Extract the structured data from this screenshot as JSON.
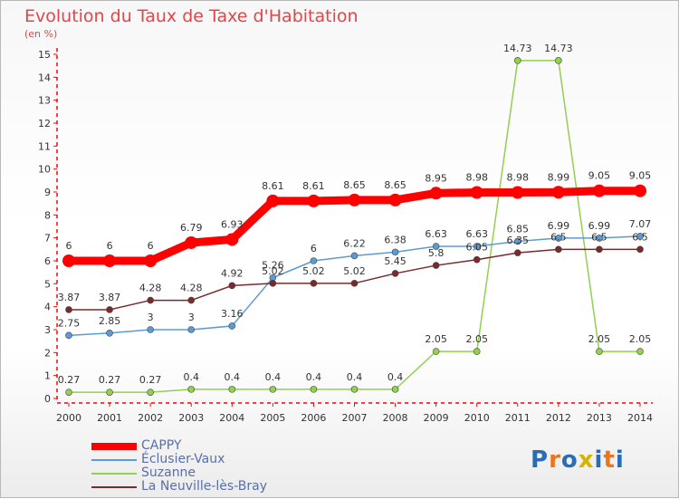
{
  "header": {
    "title": "Evolution du Taux de Taxe d'Habitation",
    "subtitle": "(en %)"
  },
  "logo": {
    "letters": [
      "P",
      "r",
      "o",
      "x",
      "i",
      "t",
      "i"
    ],
    "colors": [
      "#2a6db5",
      "#e8761e",
      "#2a6db5",
      "#d4b400",
      "#2a6db5",
      "#e8761e",
      "#2a6db5"
    ]
  },
  "chart_data": {
    "type": "line",
    "x": [
      "2000",
      "2001",
      "2002",
      "2003",
      "2004",
      "2005",
      "2006",
      "2007",
      "2008",
      "2009",
      "2010",
      "2011",
      "2012",
      "2013",
      "2014"
    ],
    "ylim": [
      0,
      15
    ],
    "yticks": [
      0,
      1,
      2,
      3,
      4,
      5,
      6,
      7,
      8,
      9,
      10,
      11,
      12,
      13,
      14,
      15
    ],
    "grid": false,
    "legend_position": "bottom-left",
    "series": [
      {
        "name": "CAPPY",
        "color": "#ff0000",
        "values": [
          6,
          6,
          6,
          6.79,
          6.93,
          8.61,
          8.61,
          8.65,
          8.65,
          8.95,
          8.98,
          8.98,
          8.99,
          9.05,
          9.05
        ],
        "labels": [
          "6",
          "6",
          "6",
          "6.79",
          "6.93",
          "8.61",
          "8.61",
          "8.65",
          "8.65",
          "8.95",
          "8.98",
          "8.98",
          "8.99",
          "9.05",
          "9.05"
        ]
      },
      {
        "name": "Éclusier-Vaux",
        "color": "#5b9bd5",
        "values": [
          2.75,
          2.85,
          3,
          3,
          3.16,
          5.26,
          6,
          6.22,
          6.38,
          6.63,
          6.63,
          6.85,
          6.99,
          6.99,
          7.07
        ],
        "labels": [
          "2.75",
          "2.85",
          "3",
          "3",
          "3.16",
          "5.26",
          "6",
          "6.22",
          "6.38",
          "6.63",
          "6.63",
          "6.85",
          "6.99",
          "6.99",
          "7.07"
        ]
      },
      {
        "name": "Suzanne",
        "color": "#92d050",
        "values": [
          0.27,
          0.27,
          0.27,
          0.4,
          0.4,
          0.4,
          0.4,
          0.4,
          0.4,
          2.05,
          2.05,
          14.73,
          14.73,
          2.05,
          2.05
        ],
        "labels": [
          "0.27",
          "0.27",
          "0.27",
          "0.4",
          "0.4",
          "0.4",
          "0.4",
          "0.4",
          "0.4",
          "2.05",
          "2.05",
          "14.73",
          "14.73",
          "2.05",
          "2.05"
        ]
      },
      {
        "name": "La Neuville-lès-Bray",
        "color": "#7a2a2a",
        "values": [
          3.87,
          3.87,
          4.28,
          4.28,
          4.92,
          5.02,
          5.02,
          5.02,
          5.45,
          5.8,
          6.05,
          6.35,
          6.5,
          6.5,
          6.5
        ],
        "labels": [
          "3.87",
          "3.87",
          "4.28",
          "4.28",
          "4.92",
          "5.02",
          "5.02",
          "5.02",
          "5.45",
          "5.8",
          "6.05",
          "6.35",
          "6.5",
          "6.5",
          "6.5"
        ]
      }
    ]
  }
}
